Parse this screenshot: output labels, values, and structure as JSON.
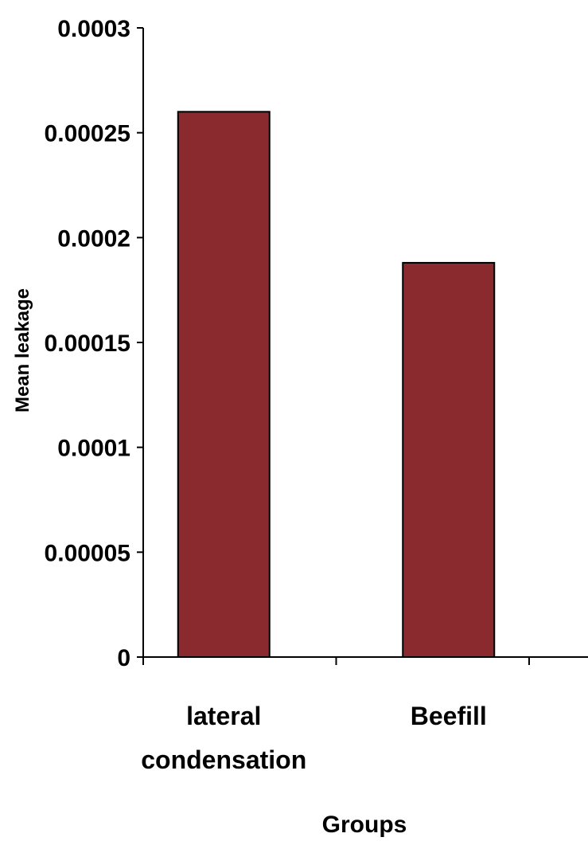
{
  "chart_data": {
    "type": "bar",
    "categories": [
      [
        "lateral",
        "condensation"
      ],
      [
        "Beefill"
      ]
    ],
    "values": [
      0.00026,
      0.000188
    ],
    "ylabel": "Mean leakage",
    "xlabel": "Groups",
    "ylim": [
      0,
      0.0003
    ],
    "yticks": [
      "0",
      "0.00005",
      "0.0001",
      "0.00015",
      "0.0002",
      "0.00025",
      "0.0003"
    ],
    "bar_color": "#8B2A2E",
    "grid": false,
    "legend": "none"
  }
}
